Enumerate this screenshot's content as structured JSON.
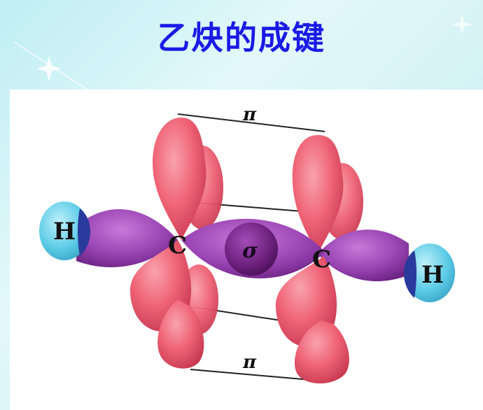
{
  "slide": {
    "title": "乙炔的成键"
  },
  "diagram": {
    "atoms": {
      "h_left": "H",
      "c_left": "C",
      "c_right": "C",
      "h_right": "H"
    },
    "bonds": {
      "sigma": "σ",
      "pi_top": "π",
      "pi_bottom": "π"
    },
    "colors": {
      "pi_orbital": "#f05a6e",
      "sigma_orbital": "#8a3aa6",
      "sigma_center": "#6a1f7a",
      "hydrogen": "#4fc6e2",
      "title": "#1a1ae6"
    }
  }
}
